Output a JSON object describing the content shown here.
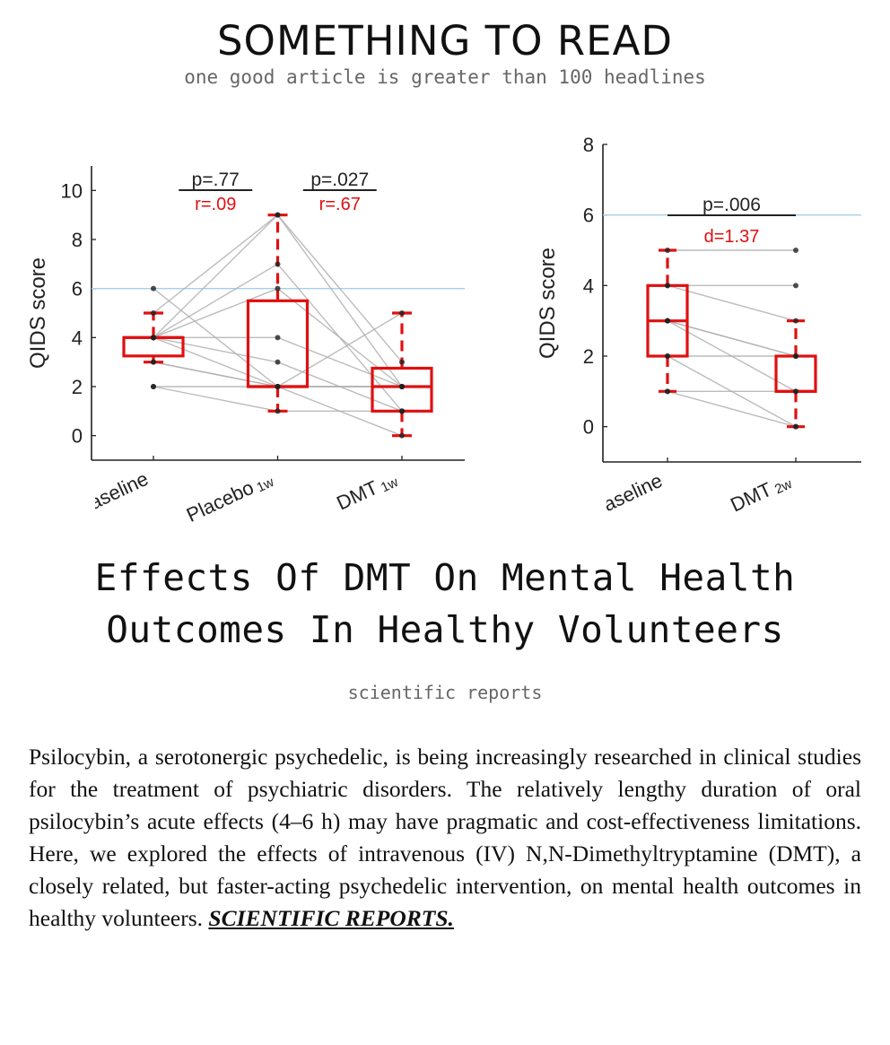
{
  "header": {
    "site_title": "SOMETHING TO READ",
    "tagline": "one good article is greater than 100 headlines"
  },
  "article": {
    "title_line1": "Effects Of DMT On Mental Health",
    "title_line2": "Outcomes In Healthy Volunteers",
    "source": "scientific reports",
    "abstract": "Psilocybin, a serotonergic psychedelic, is being increasingly researched in clinical studies for the treatment of psychiatric disorders. The relatively lengthy duration of oral psilocybin’s acute effects (4–6 h) may have pragmatic and cost-effectiveness limitations. Here, we explored the effects of intravenous (IV) N,N-Dimethyltryptamine (DMT), a closely related, but faster-acting psychedelic intervention, on mental health outcomes in healthy volunteers.",
    "link_text": "SCIENTIFIC REPORTS."
  },
  "colors": {
    "box": "#e01010",
    "threshold": "#a8cfe8",
    "subject_line": "#b0b0b0",
    "point": "#222222"
  },
  "chart_data": [
    {
      "type": "box",
      "ylabel": "QIDS score",
      "ylim": [
        -1,
        11
      ],
      "yticks": [
        0,
        2,
        4,
        6,
        8,
        10
      ],
      "categories": [
        "Baseline",
        "Placebo",
        "DMT"
      ],
      "category_subscripts": [
        "",
        "1w",
        "1w"
      ],
      "threshold": 6,
      "boxes": [
        {
          "q1": 3.25,
          "median": 4,
          "q3": 4,
          "whisker_low": 3,
          "whisker_high": 5
        },
        {
          "q1": 2,
          "median": 2,
          "q3": 5.5,
          "whisker_low": 1,
          "whisker_high": 9
        },
        {
          "q1": 1,
          "median": 2,
          "q3": 2.75,
          "whisker_low": 0,
          "whisker_high": 5
        }
      ],
      "subjects": [
        [
          6,
          2,
          2
        ],
        [
          5,
          9,
          3
        ],
        [
          4,
          9,
          2
        ],
        [
          4,
          7,
          1
        ],
        [
          4,
          6,
          2
        ],
        [
          4,
          4,
          2
        ],
        [
          4,
          3,
          1
        ],
        [
          4,
          2,
          5
        ],
        [
          3,
          2,
          0
        ],
        [
          3,
          2,
          2
        ],
        [
          2,
          2,
          2
        ],
        [
          2,
          1,
          1
        ]
      ],
      "comparisons": [
        {
          "from": 0,
          "to": 1,
          "p": "p=.77",
          "effect": "r=.09"
        },
        {
          "from": 1,
          "to": 2,
          "p": "p=.027",
          "effect": "r=.67"
        }
      ]
    },
    {
      "type": "box",
      "ylabel": "QIDS score",
      "ylim": [
        -1,
        8
      ],
      "yticks": [
        0,
        2,
        4,
        6,
        8
      ],
      "categories": [
        "Baseline",
        "DMT"
      ],
      "category_subscripts": [
        "",
        "2w"
      ],
      "threshold": 6,
      "boxes": [
        {
          "q1": 2,
          "median": 3,
          "q3": 4,
          "whisker_low": 1,
          "whisker_high": 5
        },
        {
          "q1": 1,
          "median": 1,
          "q3": 2,
          "whisker_low": 0,
          "whisker_high": 3
        }
      ],
      "subjects": [
        [
          5,
          5
        ],
        [
          4,
          4
        ],
        [
          4,
          3
        ],
        [
          3,
          2
        ],
        [
          3,
          2
        ],
        [
          3,
          1
        ],
        [
          2,
          2
        ],
        [
          2,
          0
        ],
        [
          1,
          1
        ],
        [
          1,
          0
        ]
      ],
      "comparisons": [
        {
          "from": 0,
          "to": 1,
          "p": "p=.006",
          "effect": "d=1.37"
        }
      ]
    }
  ]
}
